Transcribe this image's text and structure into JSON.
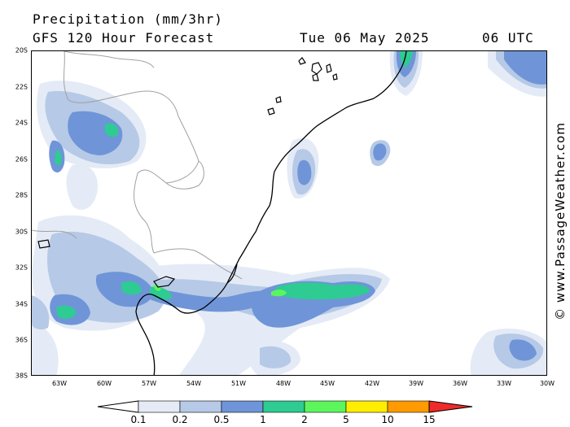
{
  "header": {
    "title": "Precipitation (mm/3hr)",
    "subtitle": "GFS 120 Hour Forecast",
    "date": "Tue 06 May 2025",
    "time": "06 UTC"
  },
  "credit": "© www.PassageWeather.com",
  "axes": {
    "lat_labels": [
      "20S",
      "22S",
      "24S",
      "26S",
      "28S",
      "30S",
      "32S",
      "34S",
      "36S",
      "38S"
    ],
    "lon_labels": [
      "63W",
      "60W",
      "57W",
      "54W",
      "51W",
      "48W",
      "45W",
      "42W",
      "39W",
      "36W",
      "33W",
      "30W"
    ]
  },
  "legend": {
    "labels": [
      "0.1",
      "0.2",
      "0.5",
      "1",
      "2",
      "5",
      "10",
      "15"
    ],
    "colors": [
      "#e4ebf6",
      "#b6c9e6",
      "#6f95d8",
      "#2ecb93",
      "#5cf55c",
      "#ffee00",
      "#ff9a00",
      "#f02a2a"
    ]
  },
  "map": {
    "land_border_color": "#a0a0a0",
    "coast_color": "#000000"
  }
}
